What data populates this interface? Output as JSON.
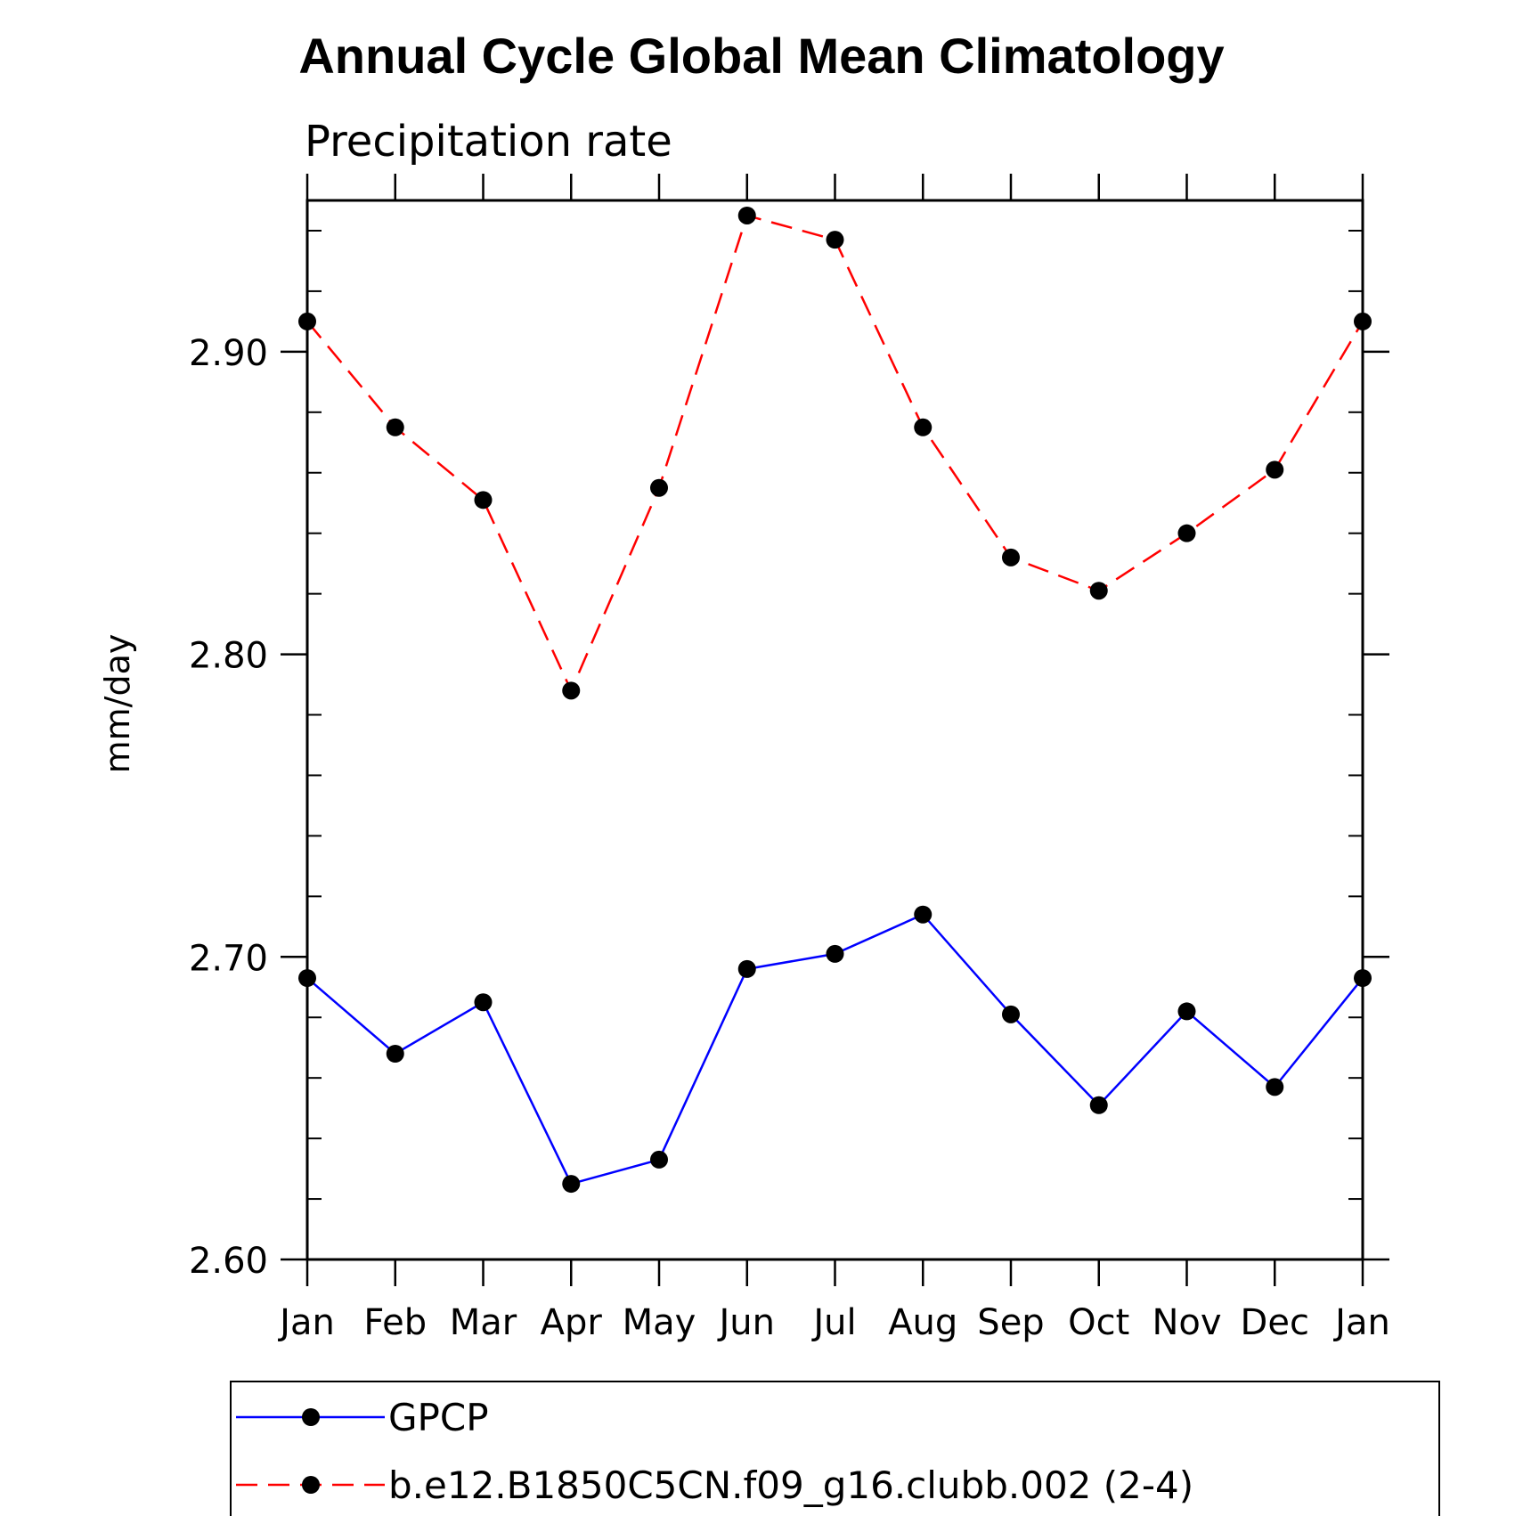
{
  "chart_data": {
    "type": "line",
    "title": "Annual Cycle Global Mean Climatology",
    "subtitle": "Precipitation rate",
    "xlabel": "",
    "ylabel": "mm/day",
    "categories": [
      "Jan",
      "Feb",
      "Mar",
      "Apr",
      "May",
      "Jun",
      "Jul",
      "Aug",
      "Sep",
      "Oct",
      "Nov",
      "Dec",
      "Jan"
    ],
    "ylim": [
      2.6,
      2.95
    ],
    "yticks_major": [
      2.6,
      2.7,
      2.8,
      2.9
    ],
    "ytick_labels": [
      "2.60",
      "2.70",
      "2.80",
      "2.90"
    ],
    "ytick_minor_step": 0.02,
    "grid": false,
    "legend_position": "bottom",
    "series": [
      {
        "name": "GPCP",
        "color": "#0000ff",
        "dash": "solid",
        "marker": "circle",
        "marker_color": "#000000",
        "values": [
          2.693,
          2.668,
          2.685,
          2.625,
          2.633,
          2.696,
          2.701,
          2.714,
          2.681,
          2.651,
          2.682,
          2.657,
          2.693
        ]
      },
      {
        "name": "b.e12.B1850C5CN.f09_g16.clubb.002 (2-4)",
        "color": "#ff0000",
        "dash": "dashed",
        "marker": "circle",
        "marker_color": "#000000",
        "values": [
          2.91,
          2.875,
          2.851,
          2.788,
          2.855,
          2.945,
          2.937,
          2.875,
          2.832,
          2.821,
          2.84,
          2.861,
          2.91
        ]
      }
    ]
  }
}
